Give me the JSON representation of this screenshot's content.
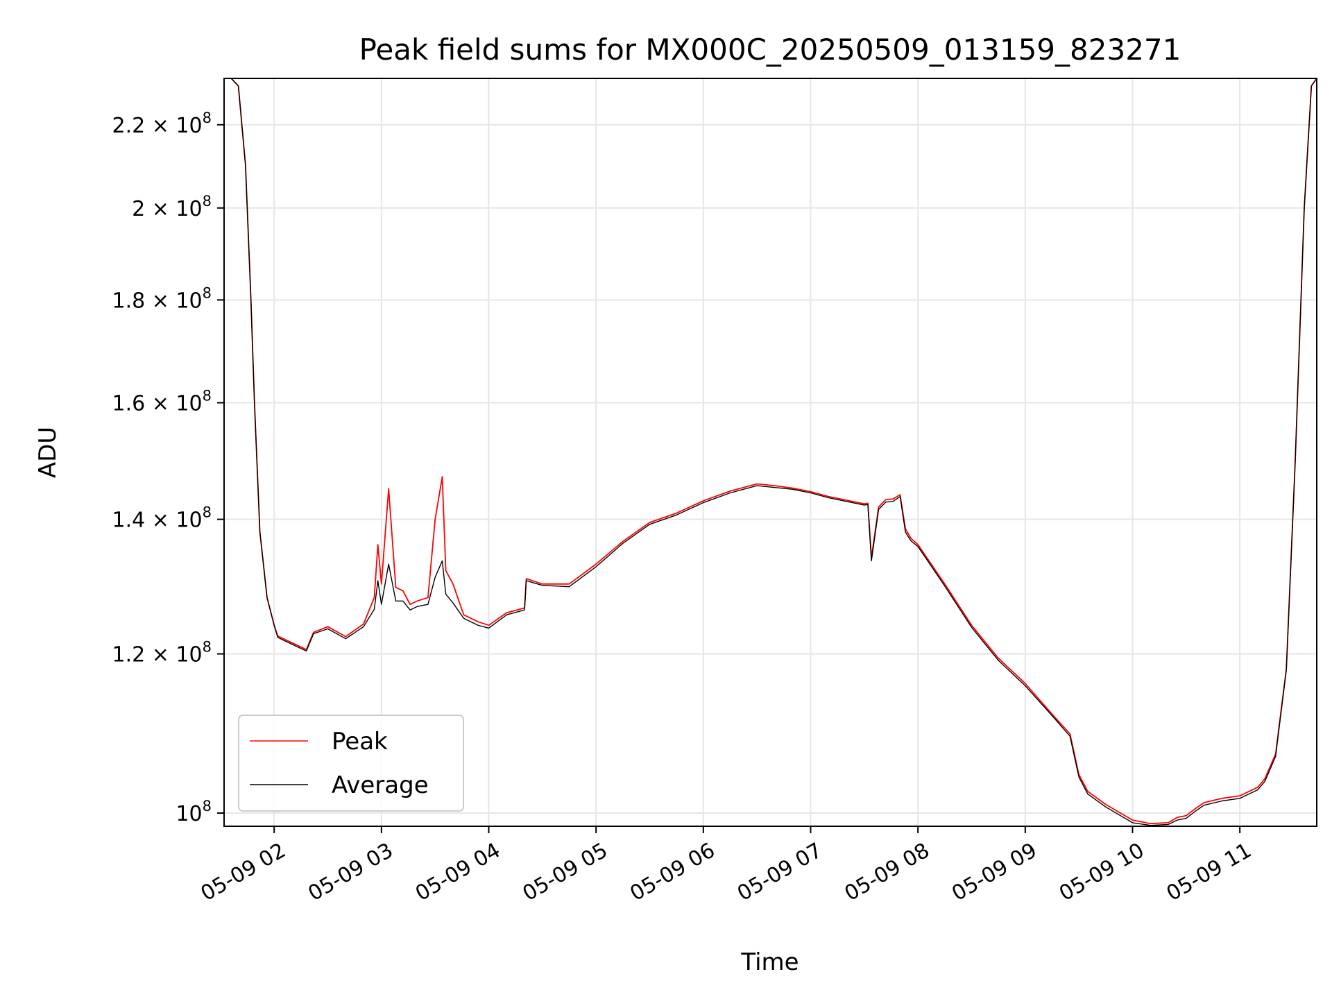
{
  "chart_data": {
    "type": "line",
    "title": "Peak field sums for MX000C_20250509_013159_823271",
    "xlabel": "Time",
    "ylabel": "ADU",
    "yscale": "log",
    "grid": true,
    "legend_position": "lower-left",
    "x_range": [
      "05-09 01:32",
      "05-09 11:43"
    ],
    "ylim": [
      98500000,
      232000000
    ],
    "x_ticks": [
      "05-09 02",
      "05-09 03",
      "05-09 04",
      "05-09 05",
      "05-09 06",
      "05-09 07",
      "05-09 08",
      "05-09 09",
      "05-09 10",
      "05-09 11"
    ],
    "y_ticks": [
      {
        "value": 100000000,
        "mantissa": "",
        "exponent": "8"
      },
      {
        "value": 120000000,
        "mantissa": "1.2",
        "exponent": "8"
      },
      {
        "value": 140000000,
        "mantissa": "1.4",
        "exponent": "8"
      },
      {
        "value": 160000000,
        "mantissa": "1.6",
        "exponent": "8"
      },
      {
        "value": 180000000,
        "mantissa": "1.8",
        "exponent": "8"
      },
      {
        "value": 200000000,
        "mantissa": "2",
        "exponent": "8"
      },
      {
        "value": 220000000,
        "mantissa": "2.2",
        "exponent": "8"
      }
    ],
    "x": [
      "05-09 01:32",
      "05-09 01:36",
      "05-09 01:40",
      "05-09 01:44",
      "05-09 01:47",
      "05-09 01:49",
      "05-09 01:51",
      "05-09 01:52",
      "05-09 01:54",
      "05-09 01:56",
      "05-09 02:00",
      "05-09 02:02",
      "05-09 02:06",
      "05-09 02:12",
      "05-09 02:18",
      "05-09 02:22",
      "05-09 02:30",
      "05-09 02:40",
      "05-09 02:50",
      "05-09 02:56",
      "05-09 02:58",
      "05-09 03:00",
      "05-09 03:04",
      "05-09 03:08",
      "05-09 03:12",
      "05-09 03:16",
      "05-09 03:20",
      "05-09 03:26",
      "05-09 03:30",
      "05-09 03:34",
      "05-09 03:36",
      "05-09 03:40",
      "05-09 03:46",
      "05-09 03:54",
      "05-09 04:00",
      "05-09 04:10",
      "05-09 04:20",
      "05-09 04:21",
      "05-09 04:30",
      "05-09 04:45",
      "05-09 05:00",
      "05-09 05:15",
      "05-09 05:30",
      "05-09 05:45",
      "05-09 06:00",
      "05-09 06:15",
      "05-09 06:30",
      "05-09 06:40",
      "05-09 06:50",
      "05-09 07:00",
      "05-09 07:10",
      "05-09 07:30",
      "05-09 07:32",
      "05-09 07:34",
      "05-09 07:38",
      "05-09 07:42",
      "05-09 07:46",
      "05-09 07:50",
      "05-09 07:53",
      "05-09 07:56",
      "05-09 08:00",
      "05-09 08:15",
      "05-09 08:30",
      "05-09 08:45",
      "05-09 09:00",
      "05-09 09:15",
      "05-09 09:25",
      "05-09 09:30",
      "05-09 09:35",
      "05-09 09:45",
      "05-09 10:00",
      "05-09 10:10",
      "05-09 10:20",
      "05-09 10:25",
      "05-09 10:30",
      "05-09 10:35",
      "05-09 10:40",
      "05-09 10:50",
      "05-09 11:00",
      "05-09 11:10",
      "05-09 11:14",
      "05-09 11:20",
      "05-09 11:26",
      "05-09 11:31",
      "05-09 11:36",
      "05-09 11:40",
      "05-09 11:43"
    ],
    "series": [
      {
        "name": "Peak",
        "color": "#ff0000",
        "values": [
          232000000,
          232000000,
          230000000,
          210000000,
          180000000,
          160000000,
          145000000,
          138000000,
          133000000,
          128000000,
          124000000,
          122500000,
          122000000,
          121300000,
          120600000,
          123000000,
          123800000,
          122400000,
          124200000,
          128000000,
          136000000,
          130000000,
          145000000,
          129500000,
          129000000,
          127000000,
          127500000,
          128000000,
          140000000,
          147000000,
          132000000,
          130000000,
          125500000,
          124500000,
          124000000,
          125800000,
          126500000,
          130800000,
          130000000,
          130000000,
          133000000,
          136500000,
          139500000,
          141000000,
          143000000,
          144600000,
          145800000,
          145500000,
          145100000,
          144500000,
          143700000,
          142500000,
          142600000,
          134000000,
          142000000,
          143200000,
          143300000,
          144000000,
          138500000,
          137000000,
          136000000,
          130000000,
          124000000,
          119400000,
          116000000,
          112000000,
          109500000,
          104500000,
          102500000,
          101000000,
          99200000,
          98800000,
          98900000,
          99500000,
          99700000,
          100500000,
          101200000,
          101700000,
          102000000,
          103000000,
          104000000,
          107000000,
          118000000,
          150000000,
          200000000,
          230000000,
          232000000
        ]
      },
      {
        "name": "Average",
        "color": "#000000",
        "values": [
          232000000,
          232000000,
          230000000,
          210000000,
          180000000,
          160000000,
          145000000,
          138000000,
          133000000,
          128000000,
          124000000,
          122300000,
          121800000,
          121100000,
          120400000,
          122800000,
          123500000,
          122100000,
          123800000,
          126300000,
          130500000,
          127000000,
          133000000,
          127500000,
          127500000,
          126200000,
          126700000,
          127000000,
          131000000,
          133500000,
          128500000,
          127200000,
          125000000,
          124000000,
          123600000,
          125500000,
          126200000,
          130500000,
          129800000,
          129600000,
          132600000,
          136200000,
          139200000,
          140700000,
          142700000,
          144300000,
          145500000,
          145200000,
          144900000,
          144300000,
          143500000,
          142300000,
          142400000,
          133500000,
          141600000,
          142800000,
          142900000,
          143700000,
          138000000,
          136600000,
          135700000,
          129700000,
          123700000,
          119100000,
          115700000,
          111800000,
          109200000,
          104200000,
          102200000,
          100700000,
          98900000,
          98600000,
          98700000,
          99200000,
          99400000,
          100200000,
          100900000,
          101400000,
          101700000,
          102700000,
          103700000,
          106700000,
          117800000,
          150000000,
          200000000,
          230000000,
          232000000
        ]
      }
    ]
  }
}
